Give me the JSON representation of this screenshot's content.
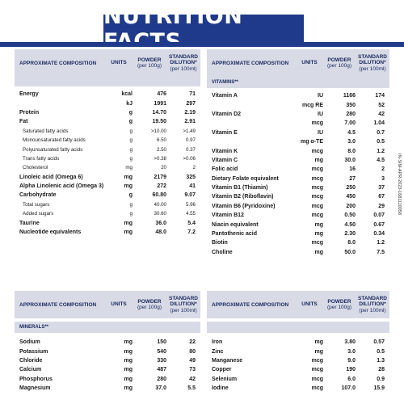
{
  "header": {
    "title": "NUTRITION FACTS"
  },
  "table_headers": {
    "approx": "APPROXIMATE COMPOSITION",
    "units": "UNITS",
    "powder_1": "POWDER",
    "powder_2": "(per 100g)",
    "std_1": "STANDARD",
    "std_2": "DILUTION*",
    "std_3": "(per 100ml)"
  },
  "left_rows": [
    {
      "name": "Energy",
      "unit": "kcal",
      "powder": "476",
      "std": "71",
      "style": "bold"
    },
    {
      "name": "",
      "unit": "kJ",
      "powder": "1991",
      "std": "297",
      "style": "bold"
    },
    {
      "name": "Protein",
      "unit": "g",
      "powder": "14.70",
      "std": "2.19",
      "style": "bold"
    },
    {
      "name": "Fat",
      "unit": "g",
      "powder": "19.50",
      "std": "2.91",
      "style": "bold"
    },
    {
      "name": "Saturated fatty acids",
      "unit": "g",
      "powder": ">10.00",
      "std": ">1.49",
      "style": "indent"
    },
    {
      "name": "Monounsaturated fatty acids",
      "unit": "g",
      "powder": "6.50",
      "std": "0.97",
      "style": "indent"
    },
    {
      "name": "Polyunsaturated fatty acids",
      "unit": "g",
      "powder": "2.50",
      "std": "0.37",
      "style": "indent"
    },
    {
      "name": "Trans fatty acids",
      "unit": "g",
      "powder": ">0.38",
      "std": ">0.06",
      "style": "indent"
    },
    {
      "name": "Cholesterol",
      "unit": "mg",
      "powder": "20",
      "std": "2",
      "style": "indent"
    },
    {
      "name": "Linoleic acid (Omega 6)",
      "unit": "mg",
      "powder": "2179",
      "std": "325",
      "style": "bold"
    },
    {
      "name": "Alpha Linolenic acid (Omega 3)",
      "unit": "mg",
      "powder": "272",
      "std": "41",
      "style": "bold"
    },
    {
      "name": "Carbohydrate",
      "unit": "g",
      "powder": "60.80",
      "std": "9.07",
      "style": "bold"
    },
    {
      "name": "Total sugars",
      "unit": "g",
      "powder": "40.00",
      "std": "5.96",
      "style": "indent"
    },
    {
      "name": "Added sugars",
      "unit": "g",
      "powder": "30.60",
      "std": "4.55",
      "style": "indent"
    },
    {
      "name": "Taurine",
      "unit": "mg",
      "powder": "36.0",
      "std": "5.4",
      "style": "bold"
    },
    {
      "name": "Nucleotide equivalents",
      "unit": "mg",
      "powder": "48.0",
      "std": "7.2",
      "style": "bold"
    }
  ],
  "vitamins_label": "VITAMINS**",
  "right_rows": [
    {
      "name": "Vitamin A",
      "unit": "IU",
      "powder": "1166",
      "std": "174"
    },
    {
      "name": "",
      "unit": "mcg RE",
      "powder": "350",
      "std": "52"
    },
    {
      "name": "Vitamin D2",
      "unit": "IU",
      "powder": "280",
      "std": "42"
    },
    {
      "name": "",
      "unit": "mcg",
      "powder": "7.00",
      "std": "1.04"
    },
    {
      "name": "Vitamin E",
      "unit": "IU",
      "powder": "4.5",
      "std": "0.7"
    },
    {
      "name": "",
      "unit": "mg α-TE",
      "powder": "3.0",
      "std": "0.5"
    },
    {
      "name": "Vitamin K",
      "unit": "mcg",
      "powder": "8.0",
      "std": "1.2"
    },
    {
      "name": "Vitamin C",
      "unit": "mg",
      "powder": "30.0",
      "std": "4.5"
    },
    {
      "name": "Folic acid",
      "unit": "mcg",
      "powder": "16",
      "std": "2"
    },
    {
      "name": "Dietary Folate equivalent",
      "unit": "mcg",
      "powder": "27",
      "std": "3"
    },
    {
      "name": "Vitamin B1 (Thiamin)",
      "unit": "mcg",
      "powder": "250",
      "std": "37"
    },
    {
      "name": "Vitamin B2 (Riboflavin)",
      "unit": "mcg",
      "powder": "450",
      "std": "67"
    },
    {
      "name": "Vitamin B6 (Pyridoxine)",
      "unit": "mcg",
      "powder": "200",
      "std": "29"
    },
    {
      "name": "Vitamin B12",
      "unit": "mcg",
      "powder": "0.50",
      "std": "0.07"
    },
    {
      "name": "Niacin equivalent",
      "unit": "mg",
      "powder": "4.50",
      "std": "0.67"
    },
    {
      "name": "Pantothenic acid",
      "unit": "mg",
      "powder": "2.30",
      "std": "0.34"
    },
    {
      "name": "Biotin",
      "unit": "mcg",
      "powder": "8.0",
      "std": "1.2"
    },
    {
      "name": "Choline",
      "unit": "mg",
      "powder": "50.0",
      "std": "7.5"
    }
  ],
  "minerals_label": "MINERALS**",
  "minerals_left": [
    {
      "name": "Sodium",
      "unit": "mg",
      "powder": "150",
      "std": "22"
    },
    {
      "name": "Potassium",
      "unit": "mg",
      "powder": "540",
      "std": "80"
    },
    {
      "name": "Chloride",
      "unit": "mg",
      "powder": "330",
      "std": "49"
    },
    {
      "name": "Calcium",
      "unit": "mg",
      "powder": "487",
      "std": "73"
    },
    {
      "name": "Phosphorus",
      "unit": "mg",
      "powder": "280",
      "std": "42"
    },
    {
      "name": "Magnesium",
      "unit": "mg",
      "powder": "37.0",
      "std": "5.5"
    }
  ],
  "minerals_right": [
    {
      "name": "Iron",
      "unit": "mg",
      "powder": "3.80",
      "std": "0.57"
    },
    {
      "name": "Zinc",
      "unit": "mg",
      "powder": "3.0",
      "std": "0.5"
    },
    {
      "name": "Manganese",
      "unit": "mcg",
      "powder": "9.0",
      "std": "1.3"
    },
    {
      "name": "Copper",
      "unit": "mcg",
      "powder": "190",
      "std": "28"
    },
    {
      "name": "Selenium",
      "unit": "mcg",
      "powder": "6.0",
      "std": "0.9"
    },
    {
      "name": "Iodine",
      "unit": "mcg",
      "powder": "107.0",
      "std": "15.9"
    }
  ],
  "side_code": "IN-SIM-APR-2023-1681110058",
  "colors": {
    "brand": "#1f3a8a",
    "header_bg": "#d8dbe6",
    "header_text": "#1c2a60"
  }
}
